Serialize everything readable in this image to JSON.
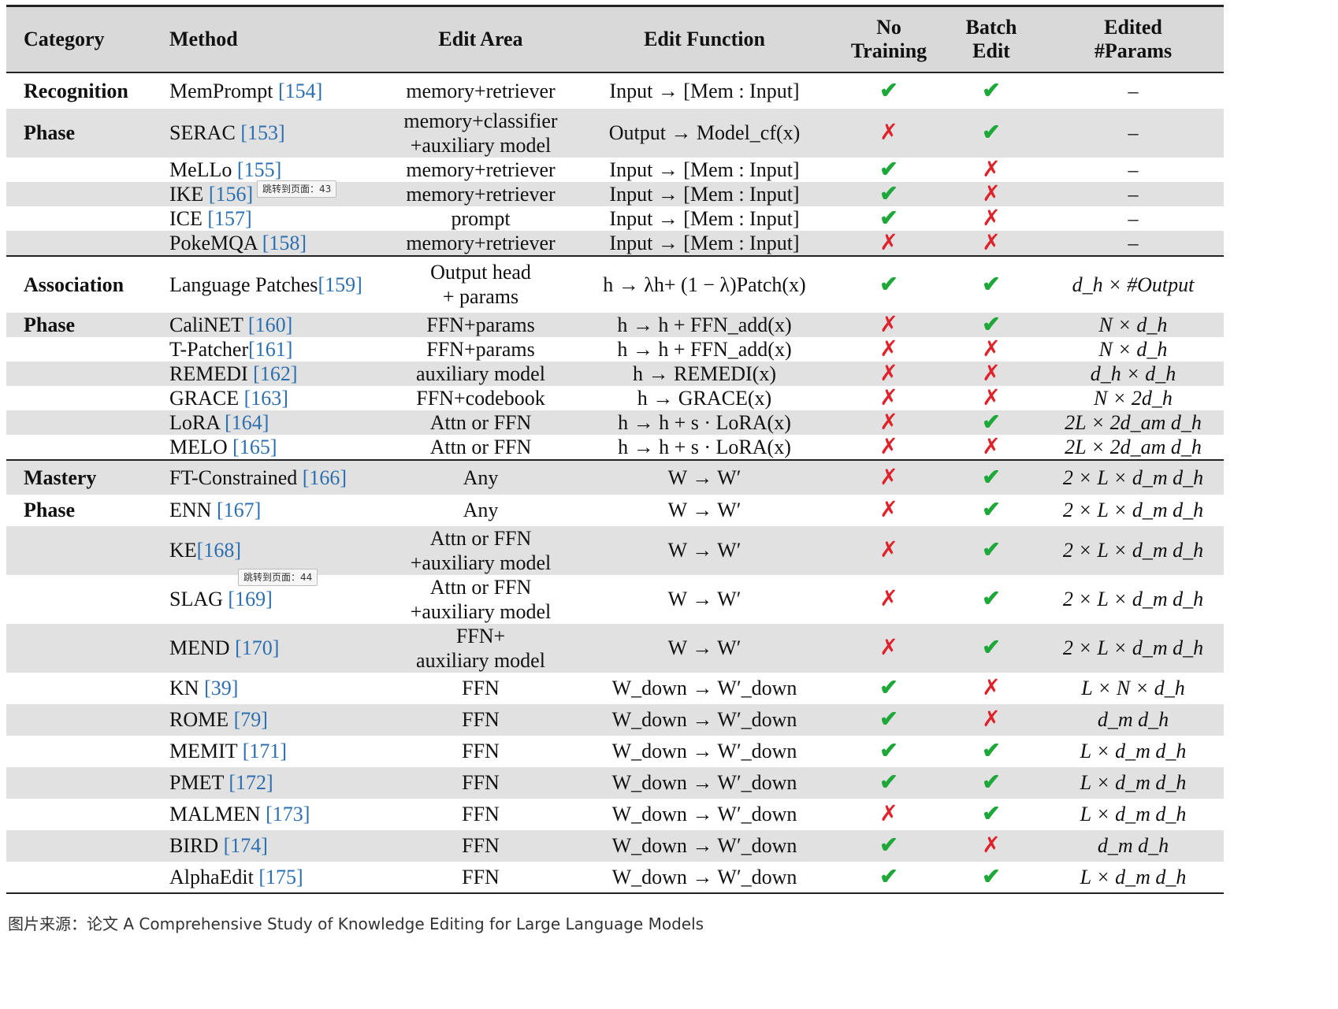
{
  "headers": {
    "category": "Category",
    "method": "Method",
    "edit_area": "Edit Area",
    "edit_function": "Edit Function",
    "no_training": "No\nTraining",
    "batch_edit": "Batch\nEdit",
    "edited_params": "Edited\n#Params"
  },
  "colors": {
    "check": "#1fa83a",
    "cross": "#e0222a",
    "ref_link": "#2c6fb0",
    "header_bg": "#d9d9d9",
    "row_shade": "#e1e1e1"
  },
  "rows": [
    {
      "cat": "Recognition",
      "method": "MemPrompt ",
      "ref": "[154]",
      "area": "memory+retriever",
      "func": "Input → [Mem : Input]",
      "no_training": "✔",
      "batch_edit": "✔",
      "params": "–"
    },
    {
      "cat": "Phase",
      "method": "SERAC ",
      "ref": "[153]",
      "area": "memory+classifier\n+auxiliary model",
      "func": "Output → Model_cf(x)",
      "no_training": "✗",
      "batch_edit": "✔",
      "params": "–"
    },
    {
      "cat": "",
      "method": "MeLLo ",
      "ref": "[155]",
      "area": "memory+retriever",
      "func": "Input → [Mem : Input]",
      "no_training": "✔",
      "batch_edit": "✗",
      "params": "–"
    },
    {
      "cat": "",
      "method": "IKE ",
      "ref": "[156]",
      "area": "memory+retriever",
      "func": "Input → [Mem : Input]",
      "no_training": "✔",
      "batch_edit": "✗",
      "params": "–"
    },
    {
      "cat": "",
      "method": "ICE ",
      "ref": "[157]",
      "area": "prompt",
      "func": "Input → [Mem : Input]",
      "no_training": "✔",
      "batch_edit": "✗",
      "params": "–"
    },
    {
      "cat": "",
      "method": "PokeMQA ",
      "ref": "[158]",
      "area": "memory+retriever",
      "func": "Input → [Mem : Input]",
      "no_training": "✗",
      "batch_edit": "✗",
      "params": "–"
    },
    {
      "cat": "Association",
      "method": "Language Patches",
      "ref": "[159]",
      "area": "Output head\n+ params",
      "func": "h → λh+\n(1 − λ)Patch(x)",
      "no_training": "✔",
      "batch_edit": "✔",
      "params": "d_h × #Output"
    },
    {
      "cat": "Phase",
      "method": "CaliNET ",
      "ref": "[160]",
      "area": "FFN+params",
      "func": "h → h + FFN_add(x)",
      "no_training": "✗",
      "batch_edit": "✔",
      "params": "N × d_h"
    },
    {
      "cat": "",
      "method": "T-Patcher",
      "ref": "[161]",
      "area": "FFN+params",
      "func": "h → h + FFN_add(x)",
      "no_training": "✗",
      "batch_edit": "✗",
      "params": "N × d_h"
    },
    {
      "cat": "",
      "method": "REMEDI ",
      "ref": "[162]",
      "area": "auxiliary model",
      "func": "h → REMEDI(x)",
      "no_training": "✗",
      "batch_edit": "✗",
      "params": "d_h × d_h"
    },
    {
      "cat": "",
      "method": "GRACE ",
      "ref": "[163]",
      "area": "FFN+codebook",
      "func": "h → GRACE(x)",
      "no_training": "✗",
      "batch_edit": "✗",
      "params": "N × 2d_h"
    },
    {
      "cat": "",
      "method": "LoRA ",
      "ref": "[164]",
      "area": "Attn or FFN",
      "func": "h → h + s · LoRA(x)",
      "no_training": "✗",
      "batch_edit": "✔",
      "params": "2L × 2d_am d_h"
    },
    {
      "cat": "",
      "method": "MELO ",
      "ref": "[165]",
      "area": "Attn or FFN",
      "func": "h → h + s · LoRA(x)",
      "no_training": "✗",
      "batch_edit": "✗",
      "params": "2L × 2d_am d_h"
    },
    {
      "cat": "Mastery",
      "method": "FT-Constrained ",
      "ref": "[166]",
      "area": "Any",
      "func": "W → W′",
      "no_training": "✗",
      "batch_edit": "✔",
      "params": "2 × L × d_m d_h"
    },
    {
      "cat": "Phase",
      "method": "ENN ",
      "ref": "[167]",
      "area": "Any",
      "func": "W → W′",
      "no_training": "✗",
      "batch_edit": "✔",
      "params": "2 × L × d_m d_h"
    },
    {
      "cat": "",
      "method": "KE",
      "ref": "[168]",
      "area": "Attn or FFN\n+auxiliary model",
      "func": "W → W′",
      "no_training": "✗",
      "batch_edit": "✔",
      "params": "2 × L × d_m d_h"
    },
    {
      "cat": "",
      "method": "SLAG ",
      "ref": "[169]",
      "area": "Attn or FFN\n+auxiliary model",
      "func": "W → W′",
      "no_training": "✗",
      "batch_edit": "✔",
      "params": "2 × L × d_m d_h"
    },
    {
      "cat": "",
      "method": "MEND ",
      "ref": "[170]",
      "area": "FFN+\nauxiliary model",
      "func": "W → W′",
      "no_training": "✗",
      "batch_edit": "✔",
      "params": "2 × L × d_m d_h"
    },
    {
      "cat": "",
      "method": "KN ",
      "ref": "[39]",
      "area": "FFN",
      "func": "W_down → W′_down",
      "no_training": "✔",
      "batch_edit": "✗",
      "params": "L × N × d_h"
    },
    {
      "cat": "",
      "method": "ROME ",
      "ref": "[79]",
      "area": "FFN",
      "func": "W_down → W′_down",
      "no_training": "✔",
      "batch_edit": "✗",
      "params": "d_m d_h"
    },
    {
      "cat": "",
      "method": "MEMIT ",
      "ref": "[171]",
      "area": "FFN",
      "func": "W_down → W′_down",
      "no_training": "✔",
      "batch_edit": "✔",
      "params": "L × d_m d_h"
    },
    {
      "cat": "",
      "method": "PMET ",
      "ref": "[172]",
      "area": "FFN",
      "func": "W_down → W′_down",
      "no_training": "✔",
      "batch_edit": "✔",
      "params": "L × d_m d_h"
    },
    {
      "cat": "",
      "method": "MALMEN ",
      "ref": "[173]",
      "area": "FFN",
      "func": "W_down → W′_down",
      "no_training": "✗",
      "batch_edit": "✔",
      "params": "L × d_m d_h"
    },
    {
      "cat": "",
      "method": "BIRD ",
      "ref": "[174]",
      "area": "FFN",
      "func": "W_down → W′_down",
      "no_training": "✔",
      "batch_edit": "✗",
      "params": "d_m d_h"
    },
    {
      "cat": "",
      "method": "AlphaEdit ",
      "ref": "[175]",
      "area": "FFN",
      "func": "W_down → W′_down",
      "no_training": "✔",
      "batch_edit": "✔",
      "params": "L × d_m d_h"
    }
  ],
  "tooltips": [
    {
      "text": "跳转到页面：43"
    },
    {
      "text": "跳转到页面：44"
    }
  ],
  "caption": "图片来源：论文 A Comprehensive Study of Knowledge Editing for Large Language Models"
}
